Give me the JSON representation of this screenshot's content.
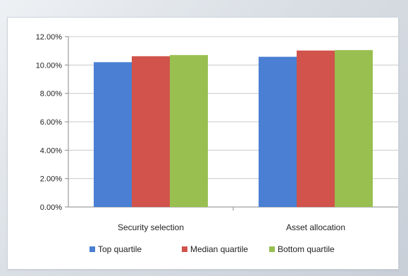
{
  "chart_data": {
    "type": "bar",
    "title": "",
    "xlabel": "",
    "ylabel": "",
    "categories": [
      "Security selection",
      "Asset allocation"
    ],
    "series": [
      {
        "name": "Top quartile",
        "color": "#4a7fd3",
        "values": [
          10.2,
          10.58
        ]
      },
      {
        "name": "Median quartile",
        "color": "#d1534b",
        "values": [
          10.62,
          11.02
        ]
      },
      {
        "name": "Bottom quartile",
        "color": "#98bf50",
        "values": [
          10.7,
          11.05
        ]
      }
    ],
    "ylim": [
      0,
      12
    ],
    "yticks": [
      "0.00%",
      "2.00%",
      "4.00%",
      "6.00%",
      "8.00%",
      "10.00%",
      "12.00%"
    ],
    "grid": true,
    "legend_position": "bottom"
  }
}
